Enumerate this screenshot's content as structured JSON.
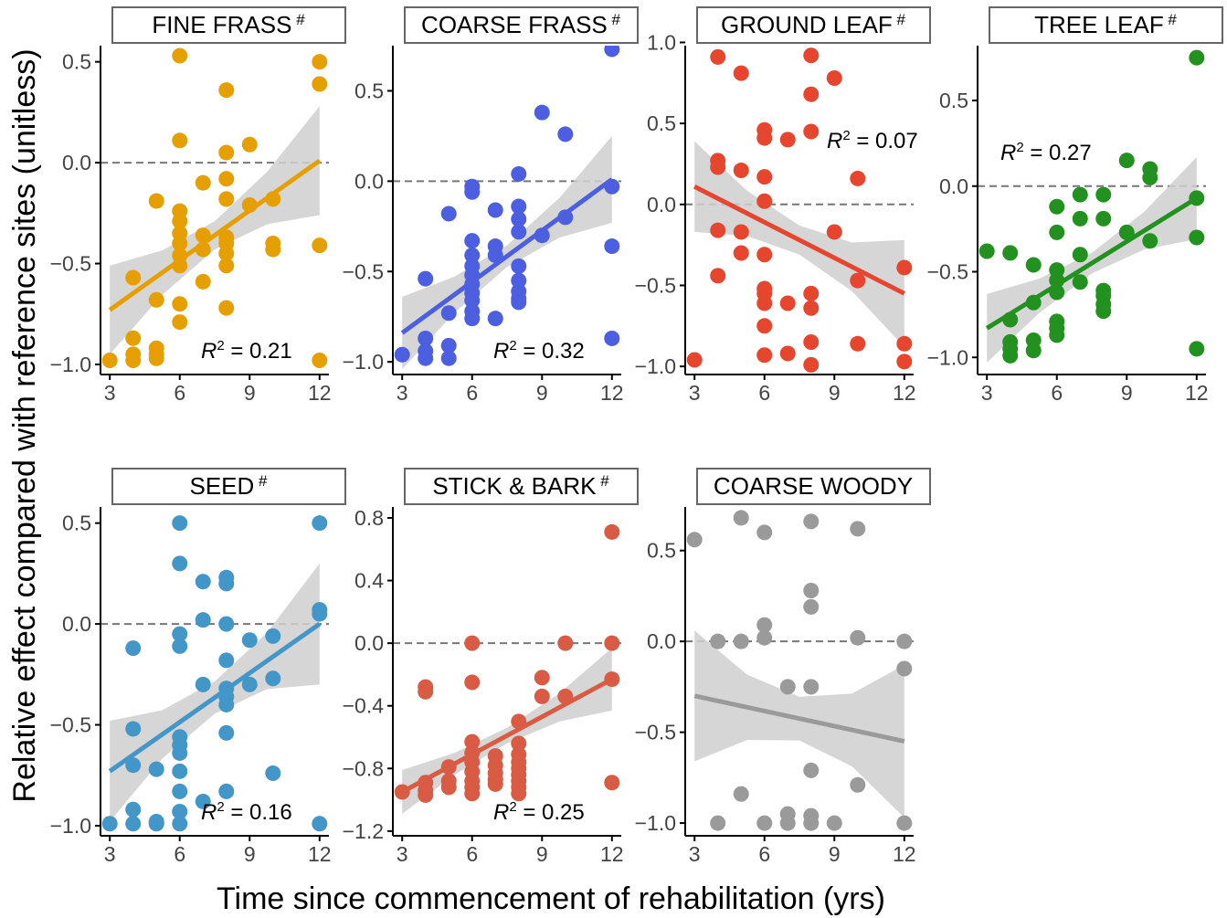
{
  "figure": {
    "ylabel": "Relative effect compared with reference sites (unitless)",
    "xlabel": "Time since commencement of rehabilitation (yrs)"
  },
  "chart_data": [
    {
      "type": "scatter",
      "title": "FINE FRASS",
      "title_mark": "#",
      "color": "#E69F00",
      "r2_label": "R",
      "r2_sup": "2",
      "r2_value": " = 0.21",
      "r2_position": "bottom-right",
      "xticks": [
        3,
        6,
        9,
        12
      ],
      "xlim": [
        2.6,
        12.4
      ],
      "yticks": [
        -1.0,
        -0.5,
        0.0,
        0.5
      ],
      "ytick_labels": [
        "−1.0",
        "−0.5",
        "0.0",
        "0.5"
      ],
      "ylim": [
        -1.05,
        0.58
      ],
      "trend": [
        [
          3,
          -0.73
        ],
        [
          12,
          0.01
        ]
      ],
      "ci_halfwidth": [
        0.22,
        0.11,
        0.07,
        0.13,
        0.27
      ],
      "points": [
        [
          3,
          -0.98
        ],
        [
          4,
          -0.57
        ],
        [
          4,
          -0.87
        ],
        [
          4,
          -0.95
        ],
        [
          4,
          -0.98
        ],
        [
          5,
          -0.19
        ],
        [
          5,
          -0.68
        ],
        [
          5,
          -0.92
        ],
        [
          5,
          -0.95
        ],
        [
          5,
          -0.97
        ],
        [
          6,
          0.53
        ],
        [
          6,
          0.11
        ],
        [
          6,
          -0.24
        ],
        [
          6,
          -0.29
        ],
        [
          6,
          -0.35
        ],
        [
          6,
          -0.4
        ],
        [
          6,
          -0.46
        ],
        [
          6,
          -0.51
        ],
        [
          6,
          -0.7
        ],
        [
          6,
          -0.79
        ],
        [
          7,
          -0.1
        ],
        [
          7,
          -0.36
        ],
        [
          7,
          -0.43
        ],
        [
          7,
          -0.59
        ],
        [
          8,
          0.36
        ],
        [
          8,
          0.05
        ],
        [
          8,
          -0.08
        ],
        [
          8,
          -0.18
        ],
        [
          8,
          -0.37
        ],
        [
          8,
          -0.4
        ],
        [
          8,
          -0.45
        ],
        [
          8,
          -0.51
        ],
        [
          8,
          -0.72
        ],
        [
          9,
          0.09
        ],
        [
          9,
          -0.21
        ],
        [
          10,
          -0.18
        ],
        [
          10,
          -0.4
        ],
        [
          10,
          -0.43
        ],
        [
          12,
          0.5
        ],
        [
          12,
          0.39
        ],
        [
          12,
          -0.41
        ],
        [
          12,
          -0.98
        ]
      ]
    },
    {
      "type": "scatter",
      "title": "COARSE FRASS",
      "title_mark": "#",
      "color": "#4B5FE0",
      "r2_label": "R",
      "r2_sup": "2",
      "r2_value": " = 0.32",
      "r2_position": "bottom-right",
      "xticks": [
        3,
        6,
        9,
        12
      ],
      "xlim": [
        2.6,
        12.4
      ],
      "yticks": [
        -1.0,
        -0.5,
        0.0,
        0.5
      ],
      "ytick_labels": [
        "−1.0",
        "−0.5",
        "0.0",
        "0.5"
      ],
      "ylim": [
        -1.07,
        0.75
      ],
      "trend": [
        [
          3,
          -0.84
        ],
        [
          12,
          0.01
        ]
      ],
      "ci_halfwidth": [
        0.2,
        0.1,
        0.06,
        0.11,
        0.24
      ],
      "points": [
        [
          3,
          -0.96
        ],
        [
          4,
          -0.54
        ],
        [
          4,
          -0.87
        ],
        [
          4,
          -0.94
        ],
        [
          4,
          -0.98
        ],
        [
          5,
          -0.18
        ],
        [
          5,
          -0.73
        ],
        [
          5,
          -0.91
        ],
        [
          5,
          -0.98
        ],
        [
          6,
          -0.03
        ],
        [
          6,
          -0.06
        ],
        [
          6,
          -0.33
        ],
        [
          6,
          -0.41
        ],
        [
          6,
          -0.47
        ],
        [
          6,
          -0.52
        ],
        [
          6,
          -0.57
        ],
        [
          6,
          -0.62
        ],
        [
          6,
          -0.66
        ],
        [
          6,
          -0.72
        ],
        [
          6,
          -0.76
        ],
        [
          7,
          -0.16
        ],
        [
          7,
          -0.36
        ],
        [
          7,
          -0.41
        ],
        [
          7,
          -0.76
        ],
        [
          8,
          0.04
        ],
        [
          8,
          -0.14
        ],
        [
          8,
          -0.21
        ],
        [
          8,
          -0.28
        ],
        [
          8,
          -0.47
        ],
        [
          8,
          -0.55
        ],
        [
          8,
          -0.61
        ],
        [
          8,
          -0.65
        ],
        [
          8,
          -0.67
        ],
        [
          9,
          0.38
        ],
        [
          9,
          -0.3
        ],
        [
          10,
          0.26
        ],
        [
          10,
          -0.2
        ],
        [
          12,
          0.73
        ],
        [
          12,
          -0.03
        ],
        [
          12,
          -0.36
        ],
        [
          12,
          -0.87
        ]
      ]
    },
    {
      "type": "scatter",
      "title": "GROUND LEAF",
      "title_mark": "#",
      "color": "#E6452E",
      "r2_label": "R",
      "r2_sup": "2",
      "r2_value": " = 0.07",
      "r2_position": "top-right",
      "xticks": [
        3,
        6,
        9,
        12
      ],
      "xlim": [
        2.6,
        12.4
      ],
      "yticks": [
        -1.0,
        -0.5,
        0.0,
        0.5,
        1.0
      ],
      "ytick_labels": [
        "−1.0",
        "−0.5",
        "0.0",
        "0.5",
        "1.0"
      ],
      "ylim": [
        -1.05,
        0.98
      ],
      "trend": [
        [
          3,
          0.11
        ],
        [
          12,
          -0.55
        ]
      ],
      "ci_halfwidth": [
        0.28,
        0.14,
        0.09,
        0.15,
        0.33
      ],
      "points": [
        [
          3,
          -0.96
        ],
        [
          4,
          0.91
        ],
        [
          4,
          0.27
        ],
        [
          4,
          0.23
        ],
        [
          4,
          -0.16
        ],
        [
          4,
          -0.44
        ],
        [
          5,
          0.81
        ],
        [
          5,
          0.21
        ],
        [
          5,
          -0.17
        ],
        [
          5,
          -0.3
        ],
        [
          6,
          0.46
        ],
        [
          6,
          0.41
        ],
        [
          6,
          0.17
        ],
        [
          6,
          0.02
        ],
        [
          6,
          -0.31
        ],
        [
          6,
          -0.52
        ],
        [
          6,
          -0.55
        ],
        [
          6,
          -0.61
        ],
        [
          6,
          -0.75
        ],
        [
          6,
          -0.93
        ],
        [
          7,
          0.4
        ],
        [
          7,
          -0.61
        ],
        [
          7,
          -0.92
        ],
        [
          8,
          0.92
        ],
        [
          8,
          0.68
        ],
        [
          8,
          0.45
        ],
        [
          8,
          -0.55
        ],
        [
          8,
          -0.64
        ],
        [
          8,
          -0.85
        ],
        [
          8,
          -0.99
        ],
        [
          9,
          0.78
        ],
        [
          9,
          -0.17
        ],
        [
          10,
          0.16
        ],
        [
          10,
          -0.47
        ],
        [
          10,
          -0.86
        ],
        [
          12,
          -0.39
        ],
        [
          12,
          -0.86
        ],
        [
          12,
          -0.97
        ]
      ]
    },
    {
      "type": "scatter",
      "title": "TREE LEAF",
      "title_mark": "#",
      "color": "#22911F",
      "r2_label": "R",
      "r2_sup": "2",
      "r2_value": " = 0.27",
      "r2_position": "top-left",
      "xticks": [
        3,
        6,
        9,
        12
      ],
      "xlim": [
        2.6,
        12.4
      ],
      "yticks": [
        -1.0,
        -0.5,
        0.0,
        0.5
      ],
      "ytick_labels": [
        "−1.0",
        "−0.5",
        "0.0",
        "0.5"
      ],
      "ylim": [
        -1.1,
        0.82
      ],
      "trend": [
        [
          3,
          -0.83
        ],
        [
          12,
          -0.07
        ]
      ],
      "ci_halfwidth": [
        0.2,
        0.1,
        0.06,
        0.11,
        0.24
      ],
      "points": [
        [
          3,
          -0.38
        ],
        [
          4,
          -0.39
        ],
        [
          4,
          -0.78
        ],
        [
          4,
          -0.91
        ],
        [
          4,
          -0.95
        ],
        [
          4,
          -0.99
        ],
        [
          5,
          -0.46
        ],
        [
          5,
          -0.68
        ],
        [
          5,
          -0.9
        ],
        [
          5,
          -0.96
        ],
        [
          6,
          -0.12
        ],
        [
          6,
          -0.27
        ],
        [
          6,
          -0.49
        ],
        [
          6,
          -0.55
        ],
        [
          6,
          -0.62
        ],
        [
          6,
          -0.79
        ],
        [
          6,
          -0.83
        ],
        [
          6,
          -0.87
        ],
        [
          7,
          -0.05
        ],
        [
          7,
          -0.19
        ],
        [
          7,
          -0.4
        ],
        [
          7,
          -0.56
        ],
        [
          8,
          -0.05
        ],
        [
          8,
          -0.19
        ],
        [
          8,
          -0.61
        ],
        [
          8,
          -0.64
        ],
        [
          8,
          -0.69
        ],
        [
          8,
          -0.73
        ],
        [
          9,
          0.15
        ],
        [
          9,
          -0.27
        ],
        [
          10,
          0.1
        ],
        [
          10,
          0.05
        ],
        [
          10,
          -0.32
        ],
        [
          12,
          0.75
        ],
        [
          12,
          -0.07
        ],
        [
          12,
          -0.3
        ],
        [
          12,
          -0.95
        ]
      ]
    },
    {
      "type": "scatter",
      "title": "SEED",
      "title_mark": "#",
      "color": "#4396C8",
      "r2_label": "R",
      "r2_sup": "2",
      "r2_value": " = 0.16",
      "r2_position": "bottom-right",
      "xticks": [
        3,
        6,
        9,
        12
      ],
      "xlim": [
        2.6,
        12.4
      ],
      "yticks": [
        -1.0,
        -0.5,
        0.0,
        0.5
      ],
      "ytick_labels": [
        "−1.0",
        "−0.5",
        "0.0",
        "0.5"
      ],
      "ylim": [
        -1.05,
        0.58
      ],
      "trend": [
        [
          3,
          -0.73
        ],
        [
          12,
          0.0
        ]
      ],
      "ci_halfwidth": [
        0.25,
        0.12,
        0.08,
        0.14,
        0.3
      ],
      "points": [
        [
          3,
          -0.99
        ],
        [
          4,
          -0.12
        ],
        [
          4,
          -0.52
        ],
        [
          4,
          -0.7
        ],
        [
          4,
          -0.92
        ],
        [
          4,
          -0.99
        ],
        [
          5,
          -0.72
        ],
        [
          5,
          -0.98
        ],
        [
          5,
          -0.99
        ],
        [
          6,
          0.5
        ],
        [
          6,
          0.3
        ],
        [
          6,
          -0.05
        ],
        [
          6,
          -0.11
        ],
        [
          6,
          -0.56
        ],
        [
          6,
          -0.6
        ],
        [
          6,
          -0.64
        ],
        [
          6,
          -0.73
        ],
        [
          6,
          -0.83
        ],
        [
          6,
          -0.93
        ],
        [
          6,
          -0.99
        ],
        [
          7,
          0.21
        ],
        [
          7,
          0.02
        ],
        [
          7,
          -0.3
        ],
        [
          7,
          -0.88
        ],
        [
          8,
          0.23
        ],
        [
          8,
          0.2
        ],
        [
          8,
          0.0
        ],
        [
          8,
          -0.18
        ],
        [
          8,
          -0.32
        ],
        [
          8,
          -0.36
        ],
        [
          8,
          -0.4
        ],
        [
          8,
          -0.54
        ],
        [
          8,
          -0.83
        ],
        [
          9,
          -0.08
        ],
        [
          9,
          -0.3
        ],
        [
          10,
          -0.06
        ],
        [
          10,
          -0.27
        ],
        [
          10,
          -0.74
        ],
        [
          12,
          0.5
        ],
        [
          12,
          0.07
        ],
        [
          12,
          0.05
        ],
        [
          12,
          -0.99
        ]
      ]
    },
    {
      "type": "scatter",
      "title": "STICK & BARK",
      "title_mark": "#",
      "color": "#D95B43",
      "r2_label": "R",
      "r2_sup": "2",
      "r2_value": " = 0.25",
      "r2_position": "bottom-right",
      "xticks": [
        3,
        6,
        9,
        12
      ],
      "xlim": [
        2.6,
        12.4
      ],
      "yticks": [
        -1.2,
        -0.8,
        -0.4,
        0.0,
        0.4,
        0.8
      ],
      "ytick_labels": [
        "−1.2",
        "−0.8",
        "−0.4",
        "0.0",
        "0.4",
        "0.8"
      ],
      "ylim": [
        -1.23,
        0.87
      ],
      "trend": [
        [
          3,
          -0.95
        ],
        [
          12,
          -0.23
        ]
      ],
      "ci_halfwidth": [
        0.14,
        0.07,
        0.05,
        0.09,
        0.2
      ],
      "points": [
        [
          3,
          -0.95
        ],
        [
          4,
          -0.28
        ],
        [
          4,
          -0.31
        ],
        [
          4,
          -0.89
        ],
        [
          4,
          -0.94
        ],
        [
          4,
          -0.97
        ],
        [
          5,
          -0.79
        ],
        [
          5,
          -0.88
        ],
        [
          5,
          -0.92
        ],
        [
          6,
          0.0
        ],
        [
          6,
          -0.25
        ],
        [
          6,
          -0.63
        ],
        [
          6,
          -0.7
        ],
        [
          6,
          -0.76
        ],
        [
          6,
          -0.82
        ],
        [
          6,
          -0.88
        ],
        [
          6,
          -0.92
        ],
        [
          6,
          -0.96
        ],
        [
          7,
          -0.72
        ],
        [
          7,
          -0.78
        ],
        [
          7,
          -0.83
        ],
        [
          7,
          -0.87
        ],
        [
          7,
          -0.9
        ],
        [
          8,
          -0.5
        ],
        [
          8,
          -0.64
        ],
        [
          8,
          -0.71
        ],
        [
          8,
          -0.76
        ],
        [
          8,
          -0.8
        ],
        [
          8,
          -0.84
        ],
        [
          8,
          -0.88
        ],
        [
          8,
          -0.92
        ],
        [
          8,
          -0.96
        ],
        [
          9,
          -0.22
        ],
        [
          9,
          -0.34
        ],
        [
          10,
          0.0
        ],
        [
          10,
          -0.34
        ],
        [
          12,
          0.71
        ],
        [
          12,
          0.0
        ],
        [
          12,
          -0.23
        ],
        [
          12,
          -0.89
        ]
      ]
    },
    {
      "type": "scatter",
      "title": "COARSE WOODY",
      "title_mark": "",
      "color": "#9A9A9A",
      "r2_label": "",
      "r2_sup": "",
      "r2_value": "",
      "r2_position": "none",
      "xticks": [
        3,
        6,
        9,
        12
      ],
      "xlim": [
        2.6,
        12.4
      ],
      "yticks": [
        -1.0,
        -0.5,
        0.0,
        0.5
      ],
      "ytick_labels": [
        "−1.0",
        "−0.5",
        "0.0",
        "0.5"
      ],
      "ylim": [
        -1.07,
        0.74
      ],
      "trend": [
        [
          3,
          -0.3
        ],
        [
          12,
          -0.55
        ]
      ],
      "ci_halfwidth": [
        0.36,
        0.18,
        0.12,
        0.2,
        0.42
      ],
      "points": [
        [
          3,
          0.56
        ],
        [
          4,
          0.0
        ],
        [
          4,
          -1.0
        ],
        [
          5,
          0.68
        ],
        [
          5,
          0.0
        ],
        [
          5,
          -0.84
        ],
        [
          6,
          0.6
        ],
        [
          6,
          0.09
        ],
        [
          6,
          0.02
        ],
        [
          6,
          -1.0
        ],
        [
          7,
          -0.25
        ],
        [
          7,
          -0.95
        ],
        [
          7,
          -1.0
        ],
        [
          8,
          0.66
        ],
        [
          8,
          0.28
        ],
        [
          8,
          0.19
        ],
        [
          8,
          -0.25
        ],
        [
          8,
          -0.71
        ],
        [
          8,
          -0.96
        ],
        [
          8,
          -1.0
        ],
        [
          9,
          -1.0
        ],
        [
          10,
          0.62
        ],
        [
          10,
          0.02
        ],
        [
          10,
          -0.79
        ],
        [
          12,
          0.0
        ],
        [
          12,
          -0.15
        ],
        [
          12,
          -1.0
        ]
      ]
    }
  ]
}
